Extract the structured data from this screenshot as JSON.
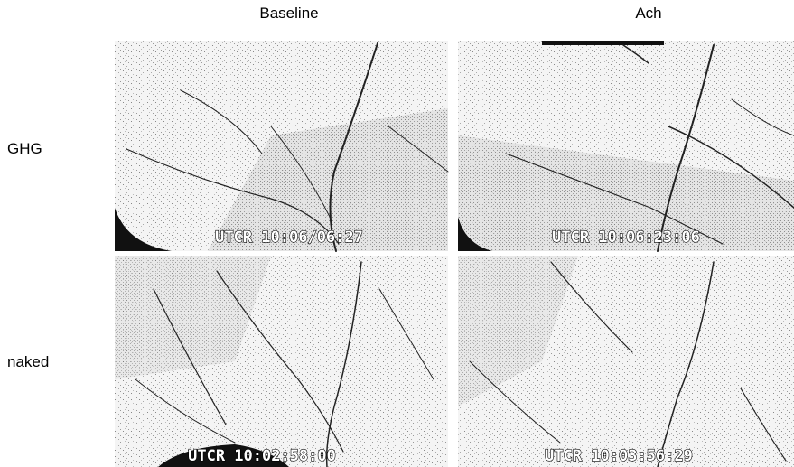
{
  "columns": [
    "Baseline",
    "Ach"
  ],
  "rows": [
    "GHG",
    "naked"
  ],
  "panels": [
    {
      "timestamp": "UTCR 10:06/06:27"
    },
    {
      "timestamp": "UTCR 10:06:23:06"
    },
    {
      "timestamp": "UTCR 10:02:58:00"
    },
    {
      "timestamp": "UTCR 10:03:56:29"
    }
  ]
}
